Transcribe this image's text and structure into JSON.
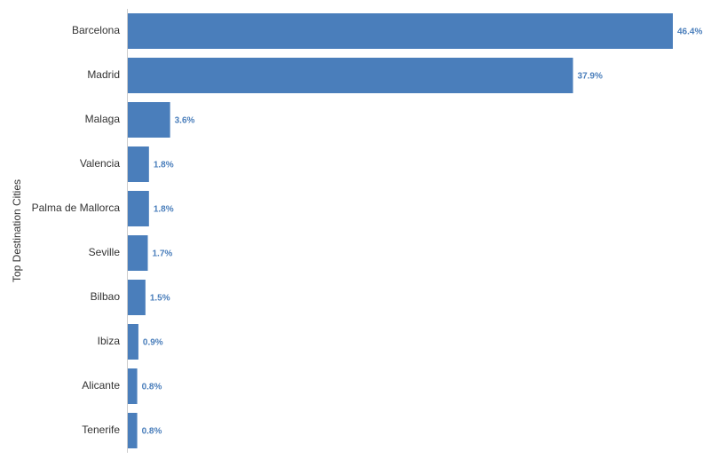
{
  "chart_data": {
    "type": "bar",
    "orientation": "horizontal",
    "y_label": "Top Destination Cities",
    "categories": [
      "Barcelona",
      "Madrid",
      "Malaga",
      "Valencia",
      "Palma de Mallorca",
      "Seville",
      "Bilbao",
      "Ibiza",
      "Alicante",
      "Tenerife"
    ],
    "values": [
      46.4,
      37.9,
      3.6,
      1.8,
      1.8,
      1.7,
      1.5,
      0.9,
      0.8,
      0.8
    ],
    "value_labels": [
      "46.4%",
      "37.9%",
      "3.6%",
      "1.8%",
      "1.8%",
      "1.7%",
      "1.5%",
      "0.9%",
      "0.8%",
      "0.8%"
    ],
    "color": "#4a7ebb"
  }
}
